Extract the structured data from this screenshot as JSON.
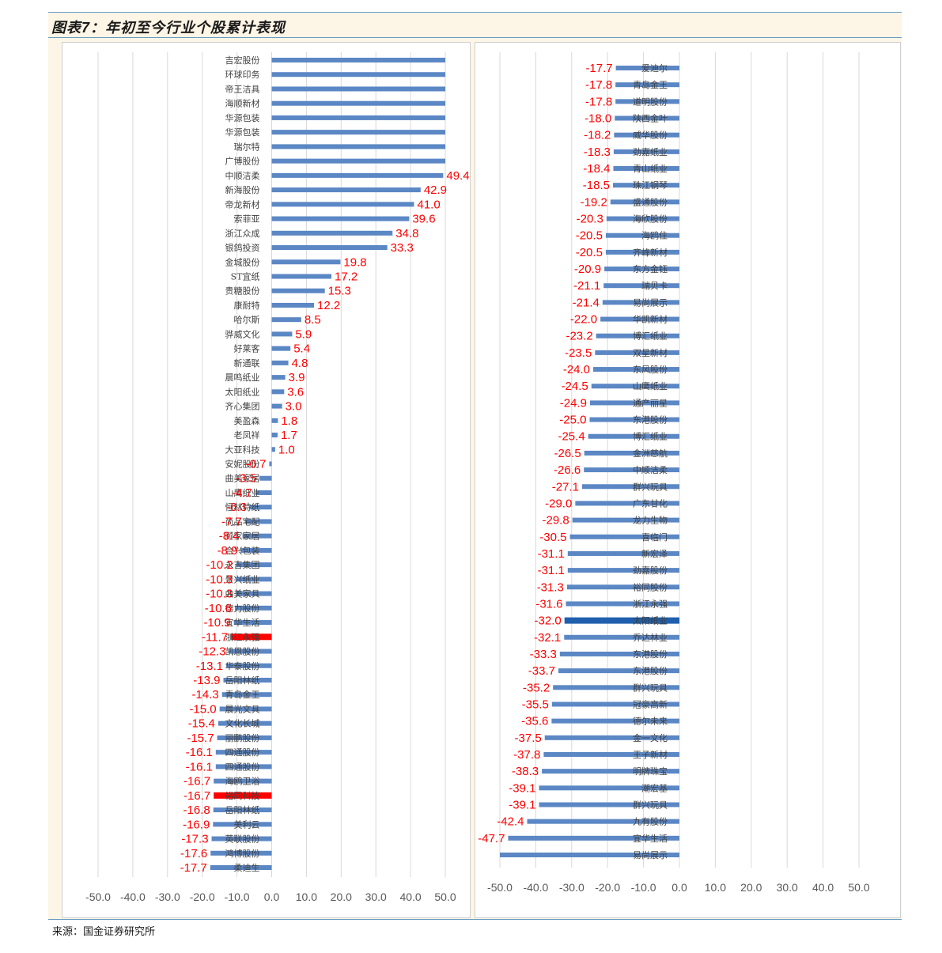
{
  "figure_title": "图表7：年初至今行业个股累计表现",
  "source_text": "来源：国金证券研究所",
  "colors": {
    "bar": "#5b87c5",
    "highlight": "#ff0000",
    "highlight_right": "#1f5fae",
    "label": "#ff0000",
    "axis_text": "#595959",
    "grid": "#d9d9d9"
  },
  "chart_data": [
    {
      "type": "bar",
      "orientation": "horizontal",
      "xlim": [
        -50,
        50
      ],
      "xticks": [
        "-50.0",
        "-40.0",
        "-30.0",
        "-20.0",
        "-10.0",
        "0.0",
        "10.0",
        "20.0",
        "30.0",
        "40.0",
        "50.0"
      ],
      "highlight": [
        "浙江永强",
        "裕同科技"
      ],
      "categories": [
        "吉宏股份",
        "环球印务",
        "帝王洁具",
        "海顺新材",
        "华源包装",
        "华源包装",
        "瑞尔特",
        "广博股份",
        "中顺洁柔",
        "新海股份",
        "帝龙新材",
        "索菲亚",
        "浙江众成",
        "银鸽投资",
        "金城股份",
        "ST宜纸",
        "贵糖股份",
        "康耐特",
        "哈尔斯",
        "骅威文化",
        "好莱客",
        "新通联",
        "晨鸣纸业",
        "太阳纸业",
        "齐心集团",
        "美盈森",
        "老凤祥",
        "大亚科技",
        "安妮股份",
        "曲美家居",
        "山鹰纸业",
        "恒林特纸",
        "尚品宅配",
        "顾家家居",
        "合兴包装",
        "永吉集团",
        "景兴纸业",
        "曲美家具",
        "德力股份",
        "宜华生活",
        "浙江永强",
        "凯恩股份",
        "华泰股份",
        "岳阳林纸",
        "青岛金王",
        "晨光文具",
        "文化长城",
        "丽鹏股份",
        "四通股份",
        "四通股份",
        "海鸥卫浴",
        "裕同科技",
        "岳阳林纸",
        "美利云",
        "英联股份",
        "鸿博股份",
        "柔迪生"
      ],
      "values": [
        50,
        50,
        50,
        50,
        50,
        50,
        50,
        50,
        49.4,
        42.9,
        41.0,
        39.6,
        34.8,
        33.3,
        19.8,
        17.2,
        15.3,
        12.2,
        8.5,
        5.9,
        5.4,
        4.8,
        3.9,
        3.6,
        3.0,
        1.8,
        1.7,
        1.0,
        -0.7,
        -3.5,
        -4.7,
        -6.3,
        -7.7,
        -8.4,
        -8.9,
        -10.2,
        -10.3,
        -10.3,
        -10.6,
        -10.9,
        -11.7,
        -12.3,
        -13.1,
        -13.9,
        -14.3,
        -15.0,
        -15.4,
        -15.7,
        -16.1,
        -16.1,
        -16.7,
        -16.7,
        -16.8,
        -16.9,
        -17.3,
        -17.6,
        -17.7
      ],
      "labels": [
        "",
        "",
        "",
        "",
        "",
        "",
        "",
        "",
        "49.4",
        "42.9",
        "41.0",
        "39.6",
        "34.8",
        "33.3",
        "19.8",
        "17.2",
        "15.3",
        "12.2",
        "8.5",
        "5.9",
        "5.4",
        "4.8",
        "3.9",
        "3.6",
        "3.0",
        "1.8",
        "1.7",
        "1.0",
        "-0.7",
        "-3.5",
        "-4.7",
        "-6.3",
        "-7.7",
        "-8.4",
        "-8.9",
        "-10.2",
        "-10.3",
        "-10.3",
        "-10.6",
        "-10.9",
        "-11.7",
        "-12.3",
        "-13.1",
        "-13.9",
        "-14.3",
        "-15.0",
        "-15.4",
        "-15.7",
        "-16.1",
        "-16.1",
        "-16.7",
        "-16.7",
        "-16.8",
        "-16.9",
        "-17.3",
        "-17.6",
        "-17.7"
      ]
    },
    {
      "type": "bar",
      "orientation": "horizontal",
      "xlim": [
        -50,
        50
      ],
      "xticks": [
        "-50.0",
        "-40.0",
        "-30.0",
        "-20.0",
        "-10.0",
        "0.0",
        "10.0",
        "20.0",
        "30.0",
        "40.0",
        "50.0"
      ],
      "highlight": [
        "太阳纸业"
      ],
      "categories": [
        "爱迪尔",
        "青岛金王",
        "道明股份",
        "陕西金叶",
        "威华股份",
        "劲嘉纸业",
        "青山纸业",
        "珠江钢琴",
        "盛通股份",
        "海欣股份",
        "海鸥住",
        "齐峰新材",
        "东方金钰",
        "瑞贝卡",
        "易尚展示",
        "华凯新材",
        "博汇纸业",
        "双星新材",
        "东风股份",
        "山鹰纸业",
        "通产丽星",
        "东港股份",
        "博汇纸业",
        "金洲慈航",
        "中顺洁柔",
        "群兴玩具",
        "广东甘化",
        "龙力生物",
        "喜临门",
        "新宏泽",
        "劲嘉股份",
        "裕同股份",
        "浙江永强",
        "太阳纸业",
        "乔达林业",
        "东港股份",
        "东港股份",
        "群兴玩具",
        "冠豪高新",
        "德尔未来",
        "金一文化",
        "王子新材",
        "明牌珠宝",
        "潮宏基",
        "群兴玩具",
        "九有股份",
        "宜华生活",
        "易尚展示"
      ],
      "values": [
        -17.7,
        -17.8,
        -17.8,
        -18.0,
        -18.2,
        -18.3,
        -18.4,
        -18.5,
        -19.2,
        -20.3,
        -20.5,
        -20.5,
        -20.9,
        -21.1,
        -21.4,
        -22.0,
        -23.2,
        -23.5,
        -24.0,
        -24.5,
        -24.9,
        -25.0,
        -25.4,
        -26.5,
        -26.6,
        -27.1,
        -29.0,
        -29.8,
        -30.5,
        -31.1,
        -31.1,
        -31.3,
        -31.6,
        -32.0,
        -32.1,
        -33.3,
        -33.7,
        -35.2,
        -35.5,
        -35.6,
        -37.5,
        -37.8,
        -38.3,
        -39.1,
        -39.1,
        -42.4,
        -47.7,
        -50
      ],
      "labels": [
        "-17.7",
        "-17.8",
        "-17.8",
        "-18.0",
        "-18.2",
        "-18.3",
        "-18.4",
        "-18.5",
        "-19.2",
        "-20.3",
        "-20.5",
        "-20.5",
        "-20.9",
        "-21.1",
        "-21.4",
        "-22.0",
        "-23.2",
        "-23.5",
        "-24.0",
        "-24.5",
        "-24.9",
        "-25.0",
        "-25.4",
        "-26.5",
        "-26.6",
        "-27.1",
        "-29.0",
        "-29.8",
        "-30.5",
        "-31.1",
        "-31.1",
        "-31.3",
        "-31.6",
        "-32.0",
        "-32.1",
        "-33.3",
        "-33.7",
        "-35.2",
        "-35.5",
        "-35.6",
        "-37.5",
        "-37.8",
        "-38.3",
        "-39.1",
        "-39.1",
        "-42.4",
        "-47.7",
        ""
      ]
    }
  ]
}
